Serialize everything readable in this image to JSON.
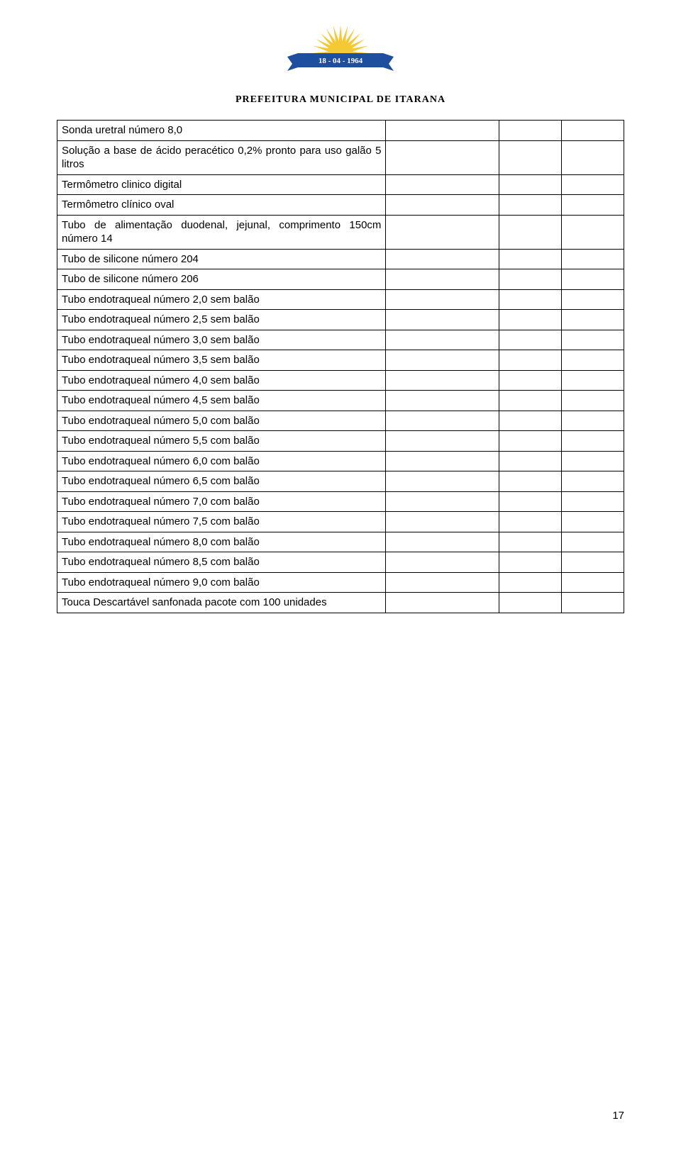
{
  "header": {
    "title": "PREFEITURA MUNICIPAL DE ITARANA",
    "banner_date": "18 - 04 - 1964",
    "logo": {
      "sun_color": "#f5c933",
      "banner_color": "#1e4ea0",
      "banner_text_color": "#ffffff"
    }
  },
  "table": {
    "colors": {
      "border": "#000000",
      "text": "#000000",
      "background": "#ffffff"
    },
    "column_widths_pct": [
      58,
      20,
      11,
      11
    ],
    "font_size_pt": 11,
    "rows": [
      {
        "label": "Sonda uretral número 8,0"
      },
      {
        "label": "Solução a base de ácido peracético 0,2% pronto para uso galão 5 litros"
      },
      {
        "label": "Termômetro clinico digital"
      },
      {
        "label": "Termômetro clínico oval"
      },
      {
        "label": "Tubo de alimentação duodenal, jejunal, comprimento 150cm número 14"
      },
      {
        "label": "Tubo de silicone número 204"
      },
      {
        "label": "Tubo de silicone número 206"
      },
      {
        "label": "Tubo endotraqueal número 2,0 sem balão"
      },
      {
        "label": "Tubo endotraqueal número 2,5 sem balão"
      },
      {
        "label": "Tubo endotraqueal número 3,0 sem balão"
      },
      {
        "label": "Tubo endotraqueal número 3,5 sem balão"
      },
      {
        "label": "Tubo endotraqueal número 4,0 sem balão"
      },
      {
        "label": "Tubo endotraqueal número 4,5 sem balão"
      },
      {
        "label": "Tubo endotraqueal número 5,0 com balão"
      },
      {
        "label": "Tubo endotraqueal número 5,5 com balão"
      },
      {
        "label": "Tubo endotraqueal número 6,0 com balão"
      },
      {
        "label": "Tubo endotraqueal número 6,5 com balão"
      },
      {
        "label": "Tubo endotraqueal número 7,0 com balão"
      },
      {
        "label": "Tubo endotraqueal número 7,5 com balão"
      },
      {
        "label": "Tubo endotraqueal número 8,0 com balão"
      },
      {
        "label": "Tubo endotraqueal número 8,5 com balão"
      },
      {
        "label": "Tubo endotraqueal número 9,0 com balão"
      },
      {
        "label": "Touca Descartável sanfonada pacote com 100 unidades"
      }
    ]
  },
  "page_number": "17"
}
